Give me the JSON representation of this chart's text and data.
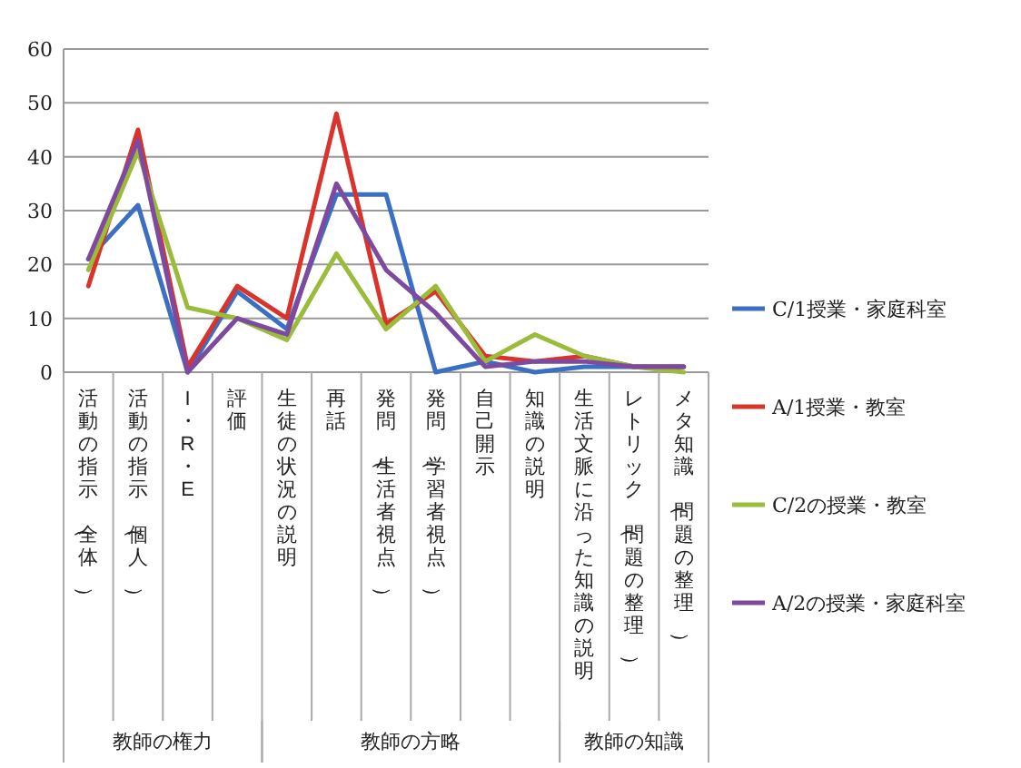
{
  "chart_data": {
    "type": "line",
    "categories": [
      "活動の指示（全体）",
      "活動の指示（個人）",
      "I・R・E",
      "評価",
      "生徒の状況の説明",
      "再話",
      "発問（生活者視点）",
      "発問（学習者視点）",
      "自己開示",
      "知識の説明",
      "生活文脈に沿った知識の説明",
      "レトリック（問題の整理）",
      "メタ知識（問題の整理）"
    ],
    "series": [
      {
        "name": "C/1授業・家庭科室",
        "color": "#3a6fc4",
        "values": [
          21,
          31,
          0,
          15,
          8,
          33,
          33,
          0,
          2,
          0,
          1,
          1,
          1
        ]
      },
      {
        "name": "A/1授業・教室",
        "color": "#d9342b",
        "values": [
          16,
          45,
          1,
          16,
          10,
          48,
          9,
          15,
          3,
          2,
          3,
          1,
          1
        ]
      },
      {
        "name": "C/2の授業・教室",
        "color": "#9bbb3a",
        "values": [
          19,
          41,
          12,
          10,
          6,
          22,
          8,
          16,
          2,
          7,
          3,
          1,
          0
        ]
      },
      {
        "name": "A/2の授業・家庭科室",
        "color": "#7d4aa0",
        "values": [
          21,
          43,
          0,
          10,
          7,
          35,
          19,
          11,
          1,
          2,
          2,
          1,
          1
        ]
      }
    ],
    "annotations": [
      "教師の権力",
      "教師の方略",
      "教師の知識"
    ],
    "ylim": [
      0,
      60
    ],
    "yticks": [
      0,
      10,
      20,
      30,
      40,
      50,
      60
    ],
    "grid": "y",
    "legend": "right",
    "marker": "none",
    "line_style": "solid"
  }
}
